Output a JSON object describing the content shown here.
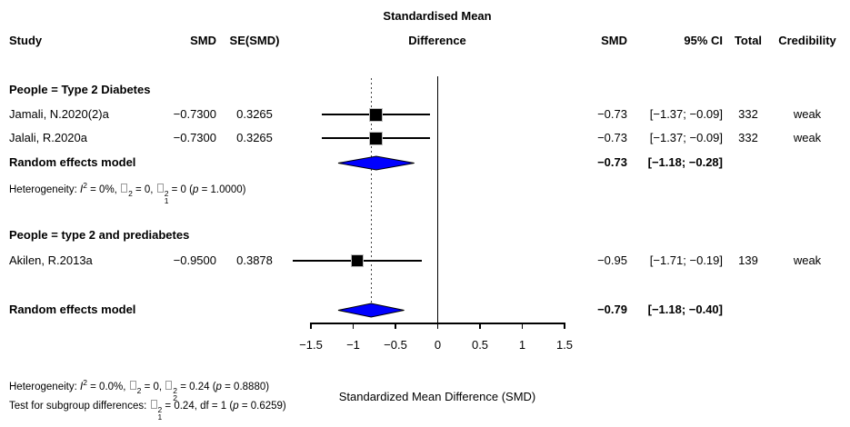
{
  "header": {
    "title_line1": "Standardised Mean",
    "title_line2": "Difference",
    "col_study": "Study",
    "col_smd_left": "SMD",
    "col_se": "SE(SMD)",
    "col_smd_right": "SMD",
    "col_ci": "95% CI",
    "col_total": "Total",
    "col_credibility": "Credibility"
  },
  "chart_data": {
    "type": "forest",
    "xlabel": "Standardized Mean Difference (SMD)",
    "axis": {
      "min": -1.5,
      "max": 1.5,
      "ticks": [
        -1.5,
        -1,
        -0.5,
        0,
        0.5,
        1,
        1.5
      ],
      "tick_labels": [
        "−1.5",
        "−1",
        "−0.5",
        "0",
        "0.5",
        "1",
        "1.5"
      ]
    },
    "zero_line": 0,
    "dotted_ref_line": -0.79,
    "colors": {
      "diamond_fill": "#0000FF",
      "marker_fill": "#000000",
      "marker_outline": "#BEBEBE",
      "line": "#000000",
      "dotted_line": "#444444"
    },
    "rows": [
      {
        "type": "group",
        "label": "People = Type 2 Diabetes"
      },
      {
        "type": "study",
        "label": "Jamali, N.2020(2)a",
        "smd_in": "−0.7300",
        "se": "0.3265",
        "est": "−0.73",
        "ci": "[−1.37; −0.09]",
        "total": "332",
        "credibility": "weak",
        "plot": {
          "mark": "square",
          "center": -0.73,
          "lo": -1.37,
          "hi": -0.09,
          "size": 13
        }
      },
      {
        "type": "study",
        "label": "Jalali, R.2020a",
        "smd_in": "−0.7300",
        "se": "0.3265",
        "est": "−0.73",
        "ci": "[−1.37; −0.09]",
        "total": "332",
        "credibility": "weak",
        "plot": {
          "mark": "square",
          "center": -0.73,
          "lo": -1.37,
          "hi": -0.09,
          "size": 13
        }
      },
      {
        "type": "pooled",
        "label": "Random effects model",
        "est": "−0.73",
        "ci": "[−1.18; −0.28]",
        "plot": {
          "mark": "diamond",
          "center": -0.73,
          "lo": -1.18,
          "hi": -0.28
        }
      },
      {
        "type": "het",
        "segments": [
          {
            "t": "Heterogeneity: "
          },
          {
            "i": "I"
          },
          {
            "sup": "2"
          },
          {
            "t": " = 0%, "
          },
          {
            "box": {
              "sup": "2"
            }
          },
          {
            "t": " = 0, "
          },
          {
            "box": {
              "sup": "2",
              "sub": "1"
            }
          },
          {
            "t": " = 0 ("
          },
          {
            "i": "p"
          },
          {
            "t": " = 1.0000)"
          }
        ]
      },
      {
        "type": "group",
        "label": "People = type 2 and prediabetes"
      },
      {
        "type": "study",
        "label": "Akilen, R.2013a",
        "smd_in": "−0.9500",
        "se": "0.3878",
        "est": "−0.95",
        "ci": "[−1.71; −0.19]",
        "total": "139",
        "credibility": "weak",
        "plot": {
          "mark": "square",
          "center": -0.95,
          "lo": -1.71,
          "hi": -0.19,
          "size": 12
        }
      },
      {
        "type": "pooled",
        "label": "Random effects model",
        "est": "−0.79",
        "ci": "[−1.18; −0.40]",
        "plot": {
          "mark": "diamond",
          "center": -0.79,
          "lo": -1.18,
          "hi": -0.4
        }
      }
    ]
  },
  "footer": {
    "heterogeneity_segments": [
      {
        "t": "Heterogeneity: "
      },
      {
        "i": "I"
      },
      {
        "sup": "2"
      },
      {
        "t": " = 0.0%, "
      },
      {
        "box": {
          "sup": "2"
        }
      },
      {
        "t": " = 0, "
      },
      {
        "box": {
          "sup": "2",
          "sub": "2"
        }
      },
      {
        "t": " = 0.24 ("
      },
      {
        "i": "p"
      },
      {
        "t": " = 0.8880)"
      }
    ],
    "subgroup_test_segments": [
      {
        "t": "Test for subgroup differences: "
      },
      {
        "box": {
          "sup": "2",
          "sub": "1"
        }
      },
      {
        "t": " = 0.24, df = 1 ("
      },
      {
        "i": "p"
      },
      {
        "t": " = 0.6259)"
      }
    ]
  }
}
